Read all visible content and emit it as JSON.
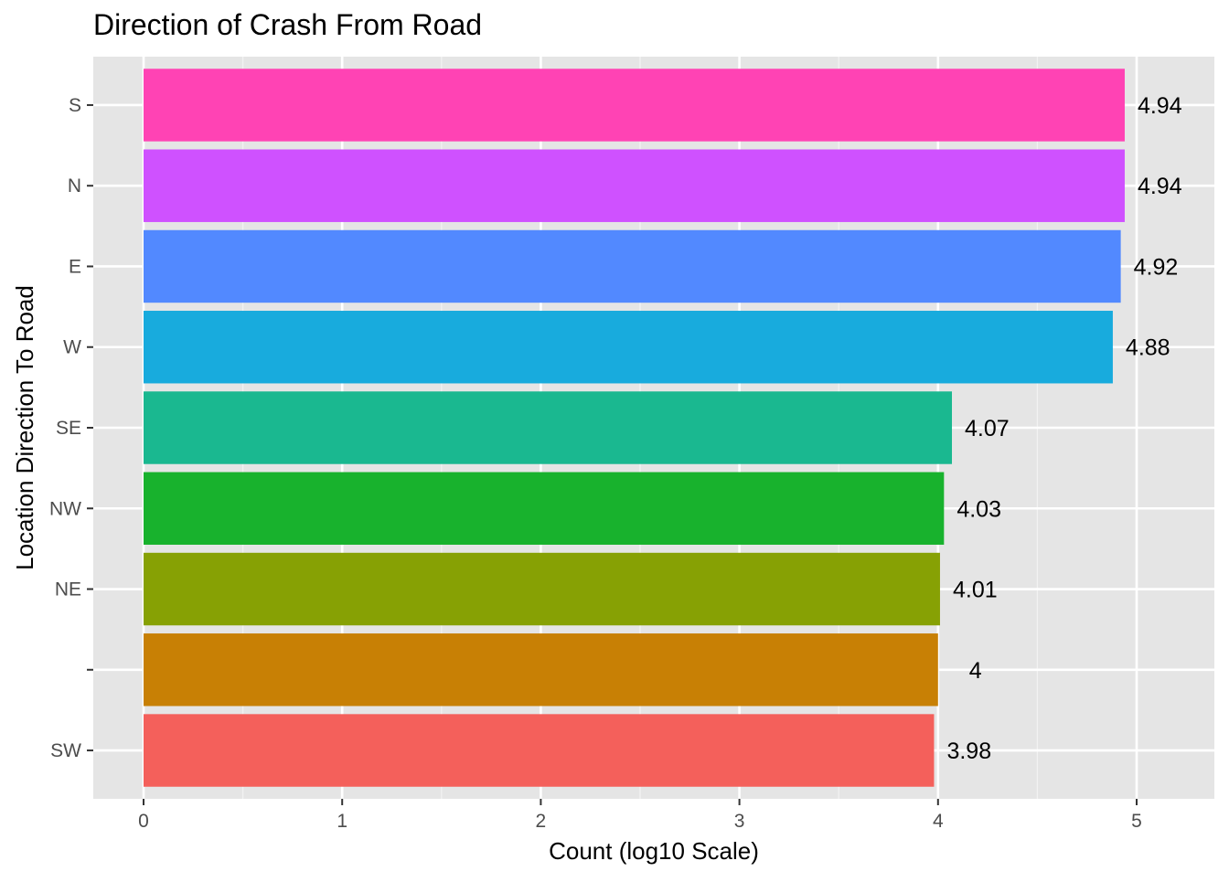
{
  "chart_data": {
    "type": "bar",
    "orientation": "horizontal",
    "title": "Direction of Crash From Road",
    "xlabel": "Count (log10 Scale)",
    "ylabel": "Location Direction To Road",
    "xlim": [
      0,
      5.2
    ],
    "xticks": [
      "0",
      "1",
      "2",
      "3",
      "4",
      "5"
    ],
    "grid": true,
    "legend": "none",
    "panel_background": "#e5e5e5",
    "categories": [
      "S",
      "N",
      "E",
      "W",
      "SE",
      "NW",
      "NE",
      "",
      "SW"
    ],
    "values": [
      4.94,
      4.94,
      4.92,
      4.88,
      4.07,
      4.03,
      4.01,
      4,
      3.98
    ],
    "value_labels": [
      "4.94",
      "4.94",
      "4.92",
      "4.88",
      "4.07",
      "4.03",
      "4.01",
      "4",
      "3.98"
    ],
    "colors": [
      "#ff43b4",
      "#cf51ff",
      "#5289ff",
      "#18abdd",
      "#1ab890",
      "#18b22d",
      "#87a104",
      "#c88005",
      "#f4605b"
    ]
  }
}
